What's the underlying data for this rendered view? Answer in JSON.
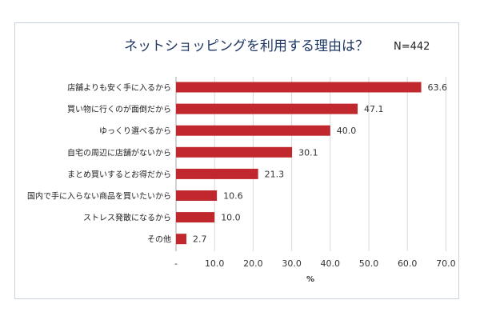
{
  "chart_data": {
    "type": "bar",
    "orientation": "horizontal",
    "title": "ネットショッピングを利用する理由は？",
    "note": "N=442",
    "xlabel": "%",
    "xlim": [
      0,
      70
    ],
    "xticks": [
      "-",
      "10.0",
      "20.0",
      "30.0",
      "40.0",
      "50.0",
      "60.0",
      "70.0"
    ],
    "grid": true,
    "bar_color": "#c0282d",
    "categories": [
      "店舗よりも安く手に入るから",
      "買い物に行くのが面倒だから",
      "ゆっくり選べるから",
      "自宅の周辺に店舗がないから",
      "まとめ買いするとお得だから",
      "国内で手に入らない商品を買いたいから",
      "ストレス発散になるから",
      "その他"
    ],
    "values": [
      63.6,
      47.1,
      40.0,
      30.1,
      21.3,
      10.6,
      10.0,
      2.7
    ],
    "value_labels": [
      "63.6",
      "47.1",
      "40.0",
      "30.1",
      "21.3",
      "10.6",
      "10.0",
      "2.7"
    ]
  }
}
